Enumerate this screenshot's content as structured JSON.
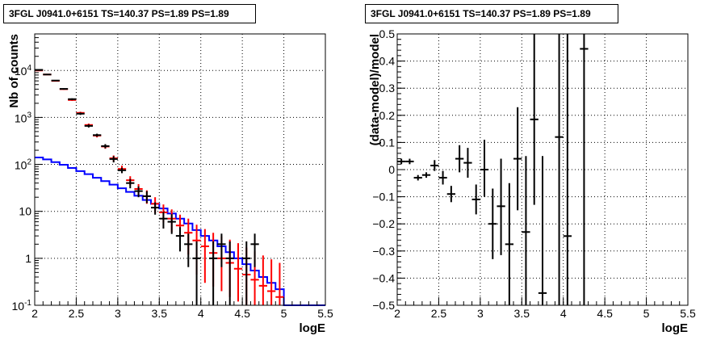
{
  "chart_data": [
    {
      "type": "line",
      "title": "3FGL J0941.0+6151 TS=140.37 PS=1.89 PS=1.89",
      "xlabel": "logE",
      "ylabel": "Nb of counts",
      "xlim": [
        2,
        5.5
      ],
      "ylim": [
        0.1,
        60000
      ],
      "yscale": "log",
      "grid": true,
      "xticks": [
        "2",
        "2.5",
        "3",
        "3.5",
        "4",
        "4.5",
        "5",
        "5.5"
      ],
      "yticks": [
        "10^-1",
        "1",
        "10",
        "10^2",
        "10^3",
        "10^4"
      ],
      "bin_edges": [
        2.0,
        2.1,
        2.2,
        2.3,
        2.4,
        2.5,
        2.6,
        2.7,
        2.8,
        2.9,
        3.0,
        3.1,
        3.2,
        3.3,
        3.4,
        3.5,
        3.6,
        3.7,
        3.8,
        3.9,
        4.0,
        4.1,
        4.2,
        4.3,
        4.4,
        4.5,
        4.6,
        4.7,
        4.8,
        4.9,
        5.0,
        5.1,
        5.2,
        5.3,
        5.4,
        5.5
      ],
      "series": [
        {
          "color": "#0000ff",
          "style": "step",
          "values": [
            140,
            128,
            112,
            98,
            84,
            72,
            62,
            52,
            44,
            37,
            31,
            26,
            21.5,
            17.5,
            14.5,
            11.5,
            9,
            7,
            5.5,
            4,
            3,
            2.4,
            1.8,
            1.35,
            1,
            0.75,
            0.55,
            0.4,
            0.3,
            0.22,
            0.1,
            0.1,
            0.1,
            0.1,
            0.1
          ]
        },
        {
          "color": "#ff0000",
          "style": "errorbars",
          "x": [
            2.05,
            2.15,
            2.25,
            2.35,
            2.45,
            2.55,
            2.65,
            2.75,
            2.85,
            2.95,
            3.05,
            3.15,
            3.25,
            3.35,
            3.45,
            3.55,
            3.65,
            3.75,
            3.85,
            3.95,
            4.05,
            4.15,
            4.25,
            4.35,
            4.45,
            4.55,
            4.65,
            4.75,
            4.85,
            4.95
          ],
          "y": [
            10000,
            8200,
            6000,
            4000,
            2350,
            1250,
            690,
            410,
            240,
            135,
            80,
            46,
            30,
            21,
            14.5,
            9.5,
            7,
            5,
            3.5,
            2.4,
            1.8,
            1.3,
            1,
            0.8,
            0.6,
            0.45,
            0.35,
            0.26,
            0.2,
            0.15
          ],
          "ylo": [
            9800,
            8000,
            5850,
            3870,
            2250,
            1180,
            640,
            375,
            215,
            115,
            66,
            36,
            21.5,
            14.5,
            9.2,
            5.8,
            3.6,
            2.3,
            1.2,
            0.45,
            0.3,
            0.25,
            0.2,
            0.15,
            0.12,
            0.1,
            0.1,
            0.1,
            0.1,
            0.1
          ],
          "yhi": [
            10200,
            8400,
            6150,
            4130,
            2450,
            1320,
            740,
            445,
            265,
            155,
            94,
            56,
            38,
            28,
            20,
            14,
            11,
            8.5,
            7,
            5.2,
            4.2,
            3.5,
            2.9,
            2.5,
            2.1,
            1.7,
            1.4,
            1.15,
            0.95,
            0.8
          ]
        },
        {
          "color": "#000000",
          "style": "errorbars",
          "x": [
            2.05,
            2.15,
            2.25,
            2.35,
            2.45,
            2.55,
            2.65,
            2.75,
            2.85,
            2.95,
            3.05,
            3.15,
            3.25,
            3.35,
            3.45,
            3.55,
            3.65,
            3.75,
            3.85,
            3.95,
            4.15,
            4.25,
            4.35,
            4.55,
            4.65
          ],
          "y": [
            10300,
            8200,
            6100,
            4050,
            2450,
            1200,
            660,
            420,
            245,
            130,
            75,
            40,
            27,
            21,
            12,
            7,
            6,
            3,
            2,
            1,
            1,
            2,
            1,
            1,
            2
          ],
          "ylo": [
            10100,
            8000,
            5950,
            3930,
            2350,
            1130,
            610,
            390,
            220,
            110,
            65,
            31,
            20,
            15,
            8.5,
            4.3,
            3.3,
            1.4,
            0.65,
            0.1,
            0.1,
            0.65,
            0.1,
            0.1,
            0.65
          ],
          "yhi": [
            10500,
            8400,
            6250,
            4170,
            2550,
            1270,
            710,
            450,
            270,
            150,
            85,
            49,
            34,
            27,
            15.5,
            9.7,
            8.7,
            4.6,
            3.35,
            2.3,
            2.3,
            3.35,
            2.3,
            2.3,
            3.35
          ]
        }
      ]
    },
    {
      "type": "scatter",
      "title": "3FGL J0941.0+6151 TS=140.37 PS=1.89 PS=1.89",
      "xlabel": "logE",
      "ylabel": "(data-model)/model",
      "xlim": [
        2,
        5.5
      ],
      "ylim": [
        -0.5,
        0.5
      ],
      "grid": true,
      "xticks": [
        "2",
        "2.5",
        "3",
        "3.5",
        "4",
        "4.5",
        "5",
        "5.5"
      ],
      "yticks": [
        "-0.5",
        "-0.4",
        "-0.3",
        "-0.2",
        "-0.1",
        "0",
        "0.1",
        "0.2",
        "0.3",
        "0.4",
        "0.5"
      ],
      "series": [
        {
          "color": "#000000",
          "style": "errorbars",
          "x": [
            2.05,
            2.15,
            2.25,
            2.35,
            2.45,
            2.55,
            2.65,
            2.75,
            2.85,
            2.95,
            3.05,
            3.15,
            3.25,
            3.35,
            3.45,
            3.55,
            3.65,
            3.75,
            3.95,
            4.05,
            4.25
          ],
          "y": [
            0.03,
            0.03,
            -0.03,
            -0.02,
            0.015,
            -0.03,
            -0.09,
            0.04,
            0.025,
            -0.11,
            0.0,
            -0.2,
            -0.135,
            -0.275,
            0.04,
            -0.23,
            0.185,
            -0.455,
            0.12,
            -0.245,
            0.445
          ],
          "ylo": [
            0.02,
            0.02,
            -0.04,
            -0.03,
            -0.005,
            -0.055,
            -0.12,
            -0.01,
            -0.03,
            -0.165,
            -0.1,
            -0.33,
            -0.315,
            -0.5,
            -0.15,
            -0.5,
            -0.13,
            -0.5,
            -0.5,
            -0.5,
            -0.5
          ],
          "yhi": [
            0.04,
            0.04,
            -0.02,
            -0.01,
            0.035,
            -0.005,
            -0.06,
            0.09,
            0.08,
            -0.055,
            0.11,
            -0.07,
            0.04,
            -0.05,
            0.23,
            0.05,
            0.5,
            0.05,
            0.5,
            0.5,
            0.5
          ]
        }
      ]
    }
  ]
}
